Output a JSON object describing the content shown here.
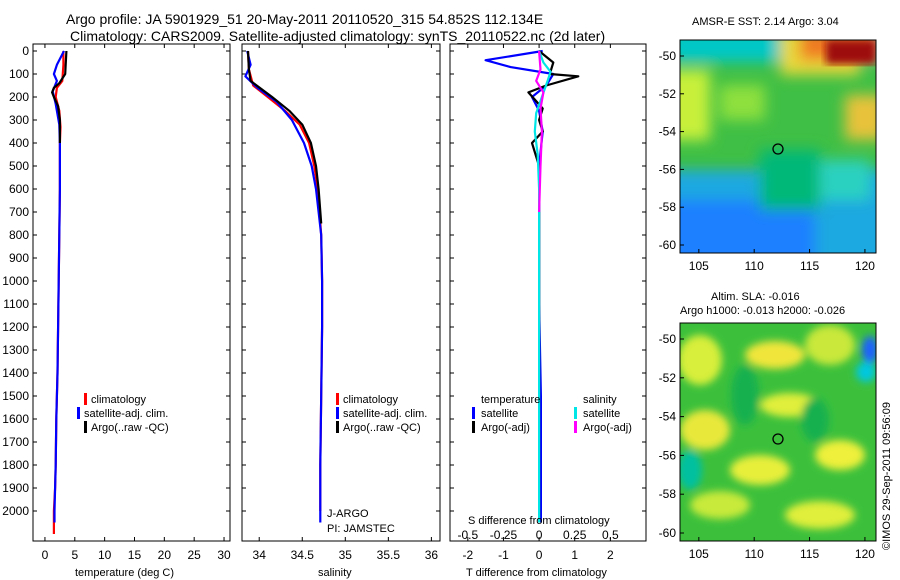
{
  "header": {
    "line1": "Argo profile: JA 5901929_51 20-May-2011 20110520_315 54.852S 112.134E",
    "line2": "Climatology: CARS2009. Satellite-adjusted climatology: synTS_20110522.nc (2d later)"
  },
  "colors": {
    "climatology": "#ff0000",
    "satellite": "#0000ff",
    "argo": "#000000",
    "sal_satellite": "#00e5e5",
    "sal_argo": "#ff00ff"
  },
  "chart_data": [
    {
      "type": "line",
      "name": "temperature",
      "xlabel": "temperature (deg C)",
      "xlim": [
        -2,
        31
      ],
      "ylim": [
        0,
        2100
      ],
      "xticks": [
        0,
        5,
        10,
        15,
        20,
        25,
        30
      ],
      "yticks": [
        0,
        100,
        200,
        300,
        400,
        500,
        600,
        700,
        800,
        900,
        1000,
        1100,
        1200,
        1300,
        1400,
        1500,
        1600,
        1700,
        1800,
        1900,
        2000
      ],
      "legend": [
        "climatology",
        "satellite-adj. clim.",
        "Argo(..raw -QC)"
      ],
      "legend_loc": "lower-center",
      "series": [
        {
          "name": "climatology",
          "x": [
            3.1,
            3.1,
            2.9,
            2.0,
            1.8,
            2.4,
            2.6,
            2.5,
            2.5,
            2.4,
            2.3,
            2.2,
            2.1,
            1.9,
            1.8,
            1.7,
            1.5,
            1.5
          ],
          "depth": [
            0,
            60,
            130,
            160,
            200,
            260,
            330,
            400,
            600,
            800,
            1000,
            1200,
            1400,
            1600,
            1800,
            1900,
            2000,
            2100
          ]
        },
        {
          "name": "satellite-adj. clim.",
          "x": [
            3.2,
            2.0,
            1.5,
            2.0,
            1.3,
            1.8,
            2.4,
            2.5,
            2.5,
            2.4,
            2.3,
            2.2,
            2.1,
            1.9,
            1.8,
            1.6,
            1.6
          ],
          "depth": [
            0,
            60,
            100,
            130,
            175,
            230,
            320,
            400,
            600,
            800,
            1000,
            1200,
            1400,
            1600,
            1800,
            2000,
            2050
          ]
        },
        {
          "name": "Argo(..raw -QC)",
          "x": [
            3.6,
            3.4,
            2.4,
            1.5,
            1.2,
            1.5,
            2.2,
            2.5,
            2.5
          ],
          "depth": [
            0,
            100,
            140,
            160,
            180,
            200,
            240,
            300,
            400
          ]
        }
      ]
    },
    {
      "type": "line",
      "name": "salinity",
      "xlabel": "salinity",
      "xlim": [
        33.8,
        36.1
      ],
      "ylim": [
        0,
        2100
      ],
      "xticks": [
        34,
        34.5,
        35,
        35.5,
        36
      ],
      "legend": [
        "climatology",
        "satellite-adj. clim.",
        "Argo(..raw -QC)"
      ],
      "legend_loc": "lower-right",
      "annotation": [
        "J-ARGO",
        "PI: JAMSTEC"
      ],
      "series": [
        {
          "name": "climatology",
          "x": [
            33.87,
            33.88,
            33.93,
            34.1,
            34.3,
            34.47,
            34.58,
            34.64,
            34.68,
            34.7,
            34.72,
            34.73,
            34.73,
            34.72,
            34.71,
            34.71
          ],
          "depth": [
            0,
            80,
            150,
            200,
            260,
            320,
            400,
            500,
            600,
            700,
            800,
            1000,
            1200,
            1500,
            1800,
            2000
          ]
        },
        {
          "name": "satellite-adj. clim.",
          "x": [
            33.86,
            33.9,
            33.84,
            33.98,
            34.2,
            34.38,
            34.52,
            34.61,
            34.66,
            34.69,
            34.72,
            34.73,
            34.73,
            34.72,
            34.71,
            34.71
          ],
          "depth": [
            0,
            60,
            110,
            160,
            220,
            300,
            400,
            500,
            600,
            700,
            800,
            1000,
            1200,
            1500,
            1800,
            2050
          ]
        },
        {
          "name": "Argo(..raw -QC)",
          "x": [
            33.87,
            33.88,
            33.9,
            34.15,
            34.35,
            34.5,
            34.6,
            34.66,
            34.69,
            34.72
          ],
          "depth": [
            0,
            80,
            130,
            200,
            260,
            320,
            400,
            500,
            600,
            750
          ]
        }
      ]
    },
    {
      "type": "line",
      "name": "difference",
      "xlabel": "T difference from climatology",
      "xlabel2": "S difference from climatology",
      "xlim": [
        -2.5,
        3
      ],
      "xticks": [
        -2,
        -1,
        0,
        1,
        2
      ],
      "xlim2": [
        -0.625,
        0.75
      ],
      "xticks2": [
        -0.5,
        -0.25,
        0,
        0.25,
        0.5
      ],
      "xticklabels2": [
        "-0.5",
        "-0.25",
        "0",
        "0.25",
        "0.5"
      ],
      "legend_t": [
        "temperature",
        "satellite",
        "Argo(-adj)"
      ],
      "legend_s": [
        "salinity",
        "satellite",
        "Argo(-adj)"
      ],
      "series": [
        {
          "name": "T satellite",
          "x": [
            0.1,
            -1.5,
            -0.8,
            0.4,
            0.2,
            -0.2,
            0.0,
            0.1,
            0.0,
            0.0,
            0.0,
            0.05,
            0.05,
            0.05
          ],
          "depth": [
            0,
            40,
            70,
            100,
            150,
            200,
            260,
            350,
            500,
            800,
            1100,
            1500,
            1900,
            2050
          ]
        },
        {
          "name": "T Argo(-adj)",
          "x": [
            0.0,
            0.4,
            0.3,
            1.1,
            0.2,
            -0.3,
            0.1,
            0.0,
            0.1,
            -0.2,
            0.0,
            0.0,
            0.0
          ],
          "depth": [
            0,
            50,
            100,
            110,
            150,
            180,
            250,
            300,
            350,
            400,
            500,
            1000,
            2050
          ]
        },
        {
          "name": "S salinity satellite",
          "x": [
            0.0,
            0.03,
            0.08,
            0.06,
            0.02,
            -0.02,
            -0.03,
            -0.01,
            0.0,
            0.0,
            0.0,
            0.0,
            0.0
          ],
          "depth": [
            0,
            50,
            90,
            130,
            200,
            270,
            350,
            450,
            600,
            800,
            1000,
            1600,
            2050
          ]
        },
        {
          "name": "S Argo(-adj)",
          "x": [
            0.0,
            0.01,
            -0.02,
            0.03,
            0.01,
            0.02,
            0.01,
            0.0
          ],
          "depth": [
            0,
            80,
            130,
            180,
            250,
            350,
            500,
            700
          ]
        }
      ]
    },
    {
      "type": "heatmap",
      "name": "sst",
      "title": "AMSR-E SST: 2.14  Argo: 3.04",
      "xticks": [
        105,
        110,
        115,
        120
      ],
      "yticks": [
        -50,
        -52,
        -54,
        -56,
        -58,
        -60
      ],
      "marker": {
        "lon": 112.134,
        "lat": -54.852
      }
    },
    {
      "type": "heatmap",
      "name": "sla",
      "title": "Altim. SLA: -0.016",
      "subtitle": "Argo h1000: -0.013 h2000: -0.026",
      "xticks": [
        105,
        110,
        115,
        120
      ],
      "yticks": [
        -50,
        -52,
        -54,
        -56,
        -58,
        -60
      ],
      "marker": {
        "lon": 112.134,
        "lat": -54.852
      }
    }
  ],
  "watermark": "©IMOS 29-Sep-2011 09:56:09"
}
